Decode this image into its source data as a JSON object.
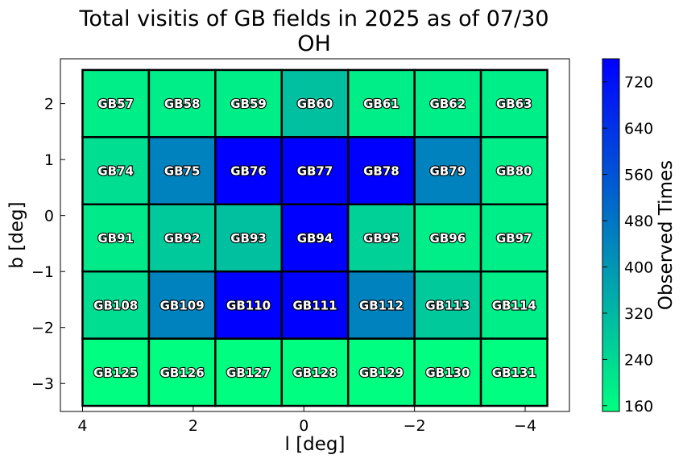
{
  "chart_data": {
    "type": "heatmap",
    "title": "Total visitis of GB fields in 2025 as of 07/30",
    "subtitle": "OH",
    "xlabel": "l [deg]",
    "ylabel": "b [deg]",
    "x_ticks": [
      {
        "value": 4,
        "label": "4"
      },
      {
        "value": 2,
        "label": "2"
      },
      {
        "value": 0,
        "label": "0"
      },
      {
        "value": -2,
        "label": "−2"
      },
      {
        "value": -4,
        "label": "−4"
      }
    ],
    "y_ticks": [
      {
        "value": 2,
        "label": "2"
      },
      {
        "value": 1,
        "label": "1"
      },
      {
        "value": 0,
        "label": "0"
      },
      {
        "value": -1,
        "label": "−1"
      },
      {
        "value": -2,
        "label": "−2"
      },
      {
        "value": -3,
        "label": "−3"
      }
    ],
    "xlim": [
      4.4,
      -4.8
    ],
    "ylim": [
      -3.5,
      2.8
    ],
    "x_inverted": true,
    "grid": false,
    "columns_l": [
      3.4,
      2.2,
      1.0,
      -0.2,
      -1.4,
      -2.6,
      -3.8
    ],
    "rows_b": [
      2.0,
      0.8,
      -0.4,
      -1.6,
      -2.8
    ],
    "cell_width_deg": 1.2,
    "cell_height_deg": 1.2,
    "cells": [
      [
        {
          "label": "GB57",
          "value": 190
        },
        {
          "label": "GB58",
          "value": 190
        },
        {
          "label": "GB59",
          "value": 190
        },
        {
          "label": "GB60",
          "value": 300
        },
        {
          "label": "GB61",
          "value": 190
        },
        {
          "label": "GB62",
          "value": 190
        },
        {
          "label": "GB63",
          "value": 190
        }
      ],
      [
        {
          "label": "GB74",
          "value": 230
        },
        {
          "label": "GB75",
          "value": 450
        },
        {
          "label": "GB76",
          "value": 760
        },
        {
          "label": "GB77",
          "value": 760
        },
        {
          "label": "GB78",
          "value": 760
        },
        {
          "label": "GB79",
          "value": 450
        },
        {
          "label": "GB80",
          "value": 190
        }
      ],
      [
        {
          "label": "GB91",
          "value": 200
        },
        {
          "label": "GB92",
          "value": 280
        },
        {
          "label": "GB93",
          "value": 300
        },
        {
          "label": "GB94",
          "value": 760
        },
        {
          "label": "GB95",
          "value": 260
        },
        {
          "label": "GB96",
          "value": 190
        },
        {
          "label": "GB97",
          "value": 190
        }
      ],
      [
        {
          "label": "GB108",
          "value": 230
        },
        {
          "label": "GB109",
          "value": 450
        },
        {
          "label": "GB110",
          "value": 760
        },
        {
          "label": "GB111",
          "value": 760
        },
        {
          "label": "GB112",
          "value": 450
        },
        {
          "label": "GB113",
          "value": 280
        },
        {
          "label": "GB114",
          "value": 190
        }
      ],
      [
        {
          "label": "GB125",
          "value": 150
        },
        {
          "label": "GB126",
          "value": 150
        },
        {
          "label": "GB127",
          "value": 150
        },
        {
          "label": "GB128",
          "value": 150
        },
        {
          "label": "GB129",
          "value": 150
        },
        {
          "label": "GB130",
          "value": 150
        },
        {
          "label": "GB131",
          "value": 150
        }
      ]
    ],
    "colorbar": {
      "label": "Observed Times",
      "min": 150,
      "max": 760,
      "colormap": "winter_r",
      "color_min": "#00ff80",
      "color_max": "#0000ff",
      "ticks": [
        {
          "value": 160,
          "label": "160"
        },
        {
          "value": 240,
          "label": "240"
        },
        {
          "value": 320,
          "label": "320"
        },
        {
          "value": 400,
          "label": "400"
        },
        {
          "value": 480,
          "label": "480"
        },
        {
          "value": 560,
          "label": "560"
        },
        {
          "value": 640,
          "label": "640"
        },
        {
          "value": 720,
          "label": "720"
        }
      ]
    }
  }
}
